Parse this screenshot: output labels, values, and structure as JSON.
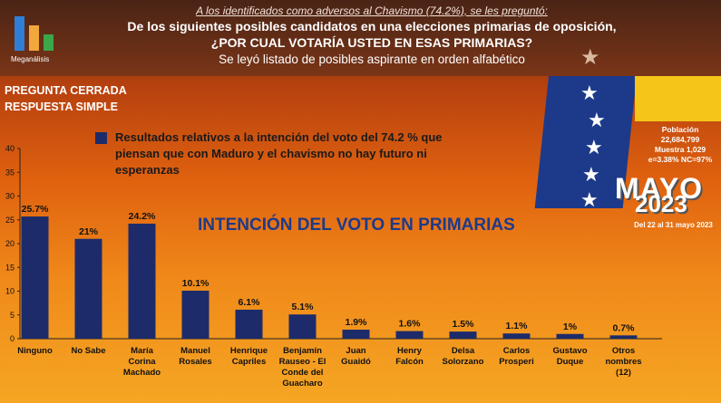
{
  "brand": {
    "name": "Meganálisis"
  },
  "header": {
    "intro": "A los identificados como adversos al Chavismo (74.2%), se les preguntó:",
    "question_line1": "De los siguientes posibles candidatos en una elecciones primarias de oposición,",
    "question_line2": "¿POR CUAL VOTARÍA USTED EN ESAS PRIMARIAS?",
    "note": "Se leyó listado de posibles aspirante en orden alfabético"
  },
  "tags": {
    "line1": "PREGUNTA  CERRADA",
    "line2": "RESPUESTA SIMPLE"
  },
  "legend": {
    "text": "Resultados relativos a la intención del voto del 74.2 % que piensan que con Maduro y el chavismo no hay futuro ni esperanzas",
    "color": "#1d2b6b"
  },
  "study": {
    "pop_label": "Población",
    "pop_value": "22,684,799",
    "sample": "Muestra 1,029",
    "error": "e=3.38%  NC=97%",
    "month": "MAYO",
    "year": "2023",
    "dates": "Del 22 al 31 mayo 2023"
  },
  "colors": {
    "bar": "#1d2b6b",
    "flag_blue": "#1d3a8a",
    "flag_yellow": "#f5c518",
    "background": "#e0620f"
  },
  "chart_data": {
    "type": "bar",
    "title": "INTENCIÓN DEL VOTO EN PRIMARIAS",
    "categories": [
      [
        "Ninguno"
      ],
      [
        "No Sabe"
      ],
      [
        "María",
        "Corina",
        "Machado"
      ],
      [
        "Manuel",
        "Rosales"
      ],
      [
        "Henrique",
        "Capriles"
      ],
      [
        "Benjamín",
        "Rauseo - El",
        "Conde del",
        "Guacharo"
      ],
      [
        "Juan",
        "Guaidó"
      ],
      [
        "Henry",
        "Falcón"
      ],
      [
        "Delsa",
        "Solorzano"
      ],
      [
        "Carlos",
        "Prosperi"
      ],
      [
        "Gustavo",
        "Duque"
      ],
      [
        "Otros",
        "nombres",
        "(12)"
      ]
    ],
    "values": [
      25.7,
      21,
      24.2,
      10.1,
      6.1,
      5.1,
      1.9,
      1.6,
      1.5,
      1.1,
      1,
      0.7
    ],
    "value_labels": [
      "25.7%",
      "21%",
      "24.2%",
      "10.1%",
      "6.1%",
      "5.1%",
      "1.9%",
      "1.6%",
      "1.5%",
      "1.1%",
      "1%",
      "0.7%"
    ],
    "ylim": [
      0,
      40
    ],
    "yticks": [
      0,
      5,
      10,
      15,
      20,
      25,
      30,
      35,
      40
    ],
    "grid": false
  }
}
